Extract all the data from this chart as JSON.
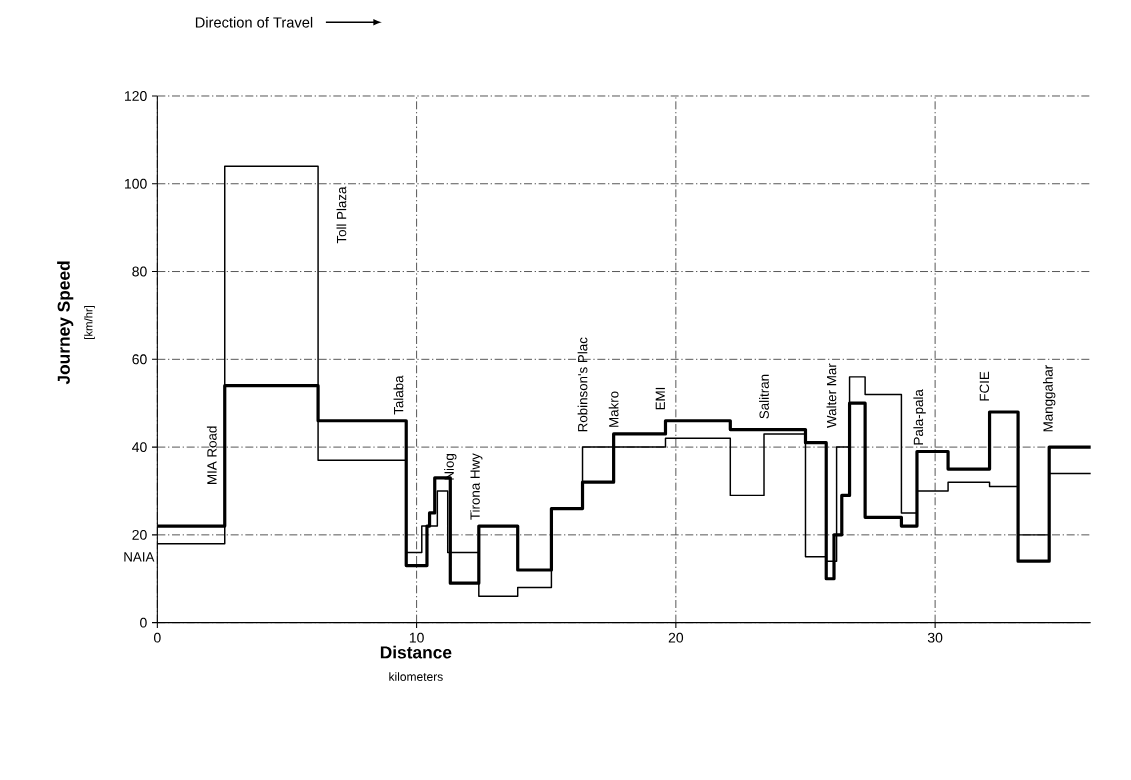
{
  "chart_data": {
    "type": "step",
    "xlabel": "Distance",
    "ylabel": "Journey Speed",
    "xlim": [
      0,
      36
    ],
    "ylim": [
      0,
      120
    ],
    "xticks": [
      0,
      10,
      20,
      30
    ],
    "yticks": [
      0,
      20,
      40,
      60,
      80,
      100,
      120
    ],
    "grid": true,
    "series": [
      {
        "color": "#000000",
        "x": [
          0,
          2.6,
          6.2,
          9.6,
          10.4,
          10.5,
          10.7,
          11.3,
          12.4,
          13.9,
          15.2,
          16.4,
          17.6,
          19.6,
          22.1,
          25.0,
          25.8,
          26.1,
          26.4,
          26.7,
          27.3,
          28.7,
          29.3,
          30.5,
          32.1,
          33.2,
          34.4,
          36
        ],
        "values": [
          22,
          54,
          46,
          13,
          22,
          25,
          33,
          9,
          22,
          12,
          26,
          32,
          43,
          46,
          44,
          41,
          10,
          20,
          29,
          50,
          24,
          22,
          39,
          35,
          48,
          14,
          40,
          40
        ]
      },
      {
        "color": "#000000",
        "x": [
          0,
          2.6,
          6.2,
          9.6,
          10.2,
          10.8,
          11.2,
          12.4,
          13.9,
          15.2,
          16.4,
          17.6,
          19.6,
          22.1,
          23.4,
          25.0,
          25.8,
          26.2,
          26.7,
          27.3,
          28.7,
          29.3,
          30.5,
          32.1,
          33.2,
          34.4,
          36
        ],
        "values": [
          18,
          104,
          37,
          16,
          22,
          30,
          16,
          6,
          8,
          26,
          40,
          40,
          42,
          29,
          43,
          15,
          14,
          40,
          56,
          52,
          25,
          30,
          32,
          31,
          20,
          34,
          34
        ]
      }
    ],
    "annotations": [
      "Direction of Travel",
      "kilometers",
      "[km/hr]",
      "NAIA",
      "MIA Road",
      "Toll Plaza",
      "Talaba",
      "Niog",
      "Tirona Hwy",
      "Robinson's Plac",
      "Makro",
      "EMI",
      "Salitran",
      "Walter Mar",
      "Pala-pala",
      "FCIE",
      "Manggahar"
    ]
  }
}
